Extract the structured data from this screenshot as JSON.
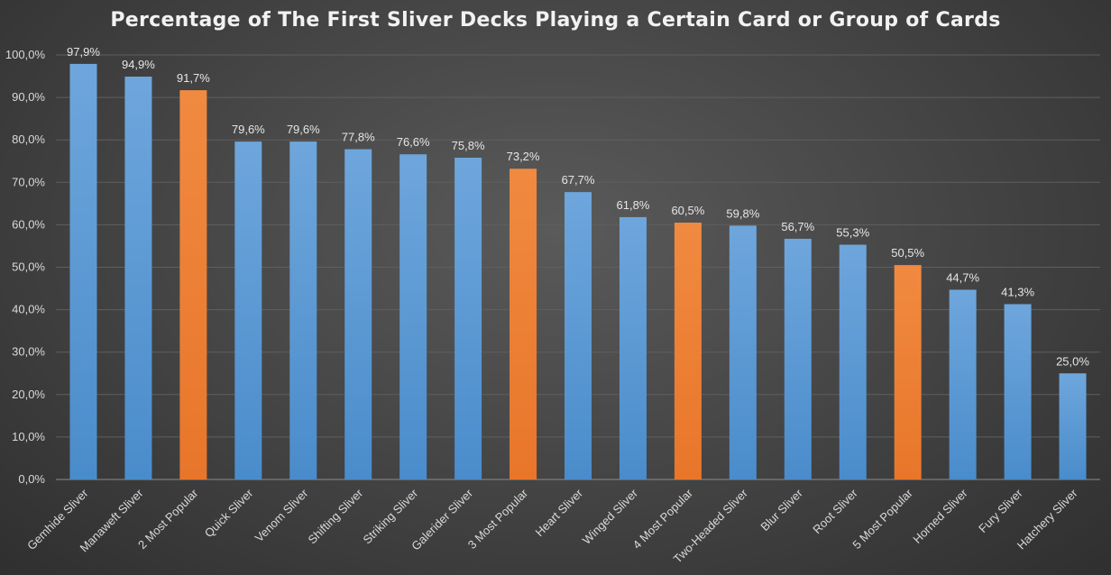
{
  "chart_data": {
    "type": "bar",
    "title": "Percentage of The First Sliver Decks Playing a Certain Card or Group of Cards",
    "xlabel": "",
    "ylabel": "",
    "ylim": [
      0,
      100
    ],
    "yticks": [
      "0,0%",
      "10,0%",
      "20,0%",
      "30,0%",
      "40,0%",
      "50,0%",
      "60,0%",
      "70,0%",
      "80,0%",
      "90,0%",
      "100,0%"
    ],
    "grid": true,
    "legend": "none",
    "categories": [
      "Gemhide Sliver",
      "Manaweft Sliver",
      "2 Most Popular",
      "Quick Sliver",
      "Venom Sliver",
      "Shifting Sliver",
      "Striking Sliver",
      "Galerider Sliver",
      "3 Most Popular",
      "Heart Sliver",
      "Winged Sliver",
      "4 Most Popular",
      "Two-Headed Sliver",
      "Blur Sliver",
      "Root Sliver",
      "5 Most Popular",
      "Horned Sliver",
      "Fury Sliver",
      "Hatchery Sliver"
    ],
    "values": [
      97.9,
      94.9,
      91.7,
      79.6,
      79.6,
      77.8,
      76.6,
      75.8,
      73.2,
      67.7,
      61.8,
      60.5,
      59.8,
      56.7,
      55.3,
      50.5,
      44.7,
      41.3,
      25.0
    ],
    "data_labels": [
      "97,9%",
      "94,9%",
      "91,7%",
      "79,6%",
      "79,6%",
      "77,8%",
      "76,6%",
      "75,8%",
      "73,2%",
      "67,7%",
      "61,8%",
      "60,5%",
      "59,8%",
      "56,7%",
      "55,3%",
      "50,5%",
      "44,7%",
      "41,3%",
      "25,0%"
    ],
    "highlighted": [
      false,
      false,
      true,
      false,
      false,
      false,
      false,
      false,
      true,
      false,
      false,
      true,
      false,
      false,
      false,
      true,
      false,
      false,
      false
    ],
    "colors": {
      "bar": "#5b9bd5",
      "highlight": "#ed7d31",
      "gridline": "#5f5f5f",
      "axis": "#8c8c8c",
      "text": "#d9d9d9"
    }
  }
}
